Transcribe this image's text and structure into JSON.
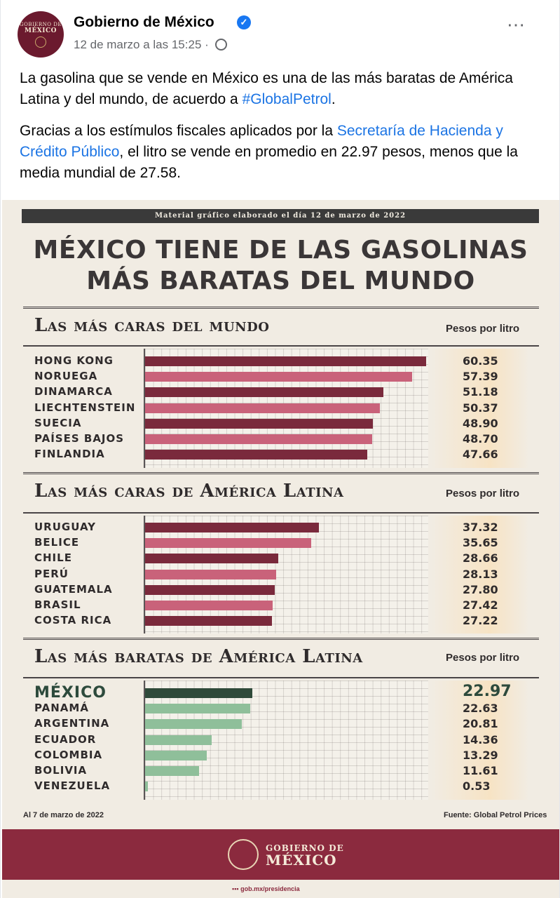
{
  "post": {
    "author": "Gobierno de México",
    "timestamp": "12 de marzo a las 15:25",
    "separator": "·",
    "more_icon": "⋯",
    "avatar_line1": "GOBIERNO DE",
    "avatar_line2": "MÉXICO",
    "p1_text": "La gasolina que se vende en México es una de las más baratas de América Latina y del mundo, de acuerdo a ",
    "p1_link": "#GlobalPetrol",
    "p1_end": ".",
    "p2_text1": "Gracias a los estímulos fiscales aplicados por la ",
    "p2_link": "Secretaría de Hacienda y Crédito Público",
    "p2_text2": ", el litro se vende en promedio en 22.97 pesos, menos que la media mundial de 27.58."
  },
  "infographic": {
    "band": "Material gráfico elaborado el día 12 de marzo de 2022",
    "title_line1": "MÉXICO TIENE  DE LAS GASOLINAS",
    "title_line2": "MÁS BARATAS DEL MUNDO",
    "unit": "Pesos por litro",
    "footer_left": "Al 7 de marzo de 2022",
    "footer_right": "Fuente: Global Petrol Prices",
    "brand_line1": "GOBIERNO DE",
    "brand_line2": "MÉXICO",
    "social": "gob.mx/presidencia",
    "colors": {
      "dark_red": "#7a2a3c",
      "pink": "#c9627a",
      "dark_green": "#2f4a3a",
      "light_green": "#8fbf9a"
    }
  },
  "chart_data": [
    {
      "type": "bar",
      "title": "Las más caras del mundo",
      "ylabel": "Pesos por litro",
      "categories": [
        "Hong Kong",
        "Noruega",
        "Dinamarca",
        "Liechtenstein",
        "Suecia",
        "Países Bajos",
        "Finlandia"
      ],
      "values": [
        60.35,
        57.39,
        51.18,
        50.37,
        48.9,
        48.7,
        47.66
      ],
      "value_labels": [
        "60.35",
        "57.39",
        "51.18",
        "50.37",
        "48.90",
        "48.70",
        "47.66"
      ],
      "colors": [
        "#7a2a3c",
        "#c9627a",
        "#7a2a3c",
        "#c9627a",
        "#7a2a3c",
        "#c9627a",
        "#7a2a3c"
      ],
      "xlim": [
        0,
        60.35
      ]
    },
    {
      "type": "bar",
      "title": "Las más caras de América Latina",
      "ylabel": "Pesos por litro",
      "categories": [
        "Uruguay",
        "Belice",
        "Chile",
        "Perú",
        "Guatemala",
        "Brasil",
        "Costa Rica"
      ],
      "values": [
        37.32,
        35.65,
        28.66,
        28.13,
        27.8,
        27.42,
        27.22
      ],
      "value_labels": [
        "37.32",
        "35.65",
        "28.66",
        "28.13",
        "27.80",
        "27.42",
        "27.22"
      ],
      "colors": [
        "#7a2a3c",
        "#c9627a",
        "#7a2a3c",
        "#c9627a",
        "#7a2a3c",
        "#c9627a",
        "#7a2a3c"
      ],
      "xlim": [
        0,
        60.35
      ]
    },
    {
      "type": "bar",
      "title": "Las más baratas de América Latina",
      "ylabel": "Pesos por litro",
      "categories": [
        "México",
        "Panamá",
        "Argentina",
        "Ecuador",
        "Colombia",
        "Bolivia",
        "Venezuela"
      ],
      "values": [
        22.97,
        22.63,
        20.81,
        14.36,
        13.29,
        11.61,
        0.53
      ],
      "value_labels": [
        "22.97",
        "22.63",
        "20.81",
        "14.36",
        "13.29",
        "11.61",
        "0.53"
      ],
      "colors": [
        "#2f4a3a",
        "#8fbf9a",
        "#8fbf9a",
        "#8fbf9a",
        "#8fbf9a",
        "#8fbf9a",
        "#8fbf9a"
      ],
      "xlim": [
        0,
        60.35
      ]
    }
  ]
}
